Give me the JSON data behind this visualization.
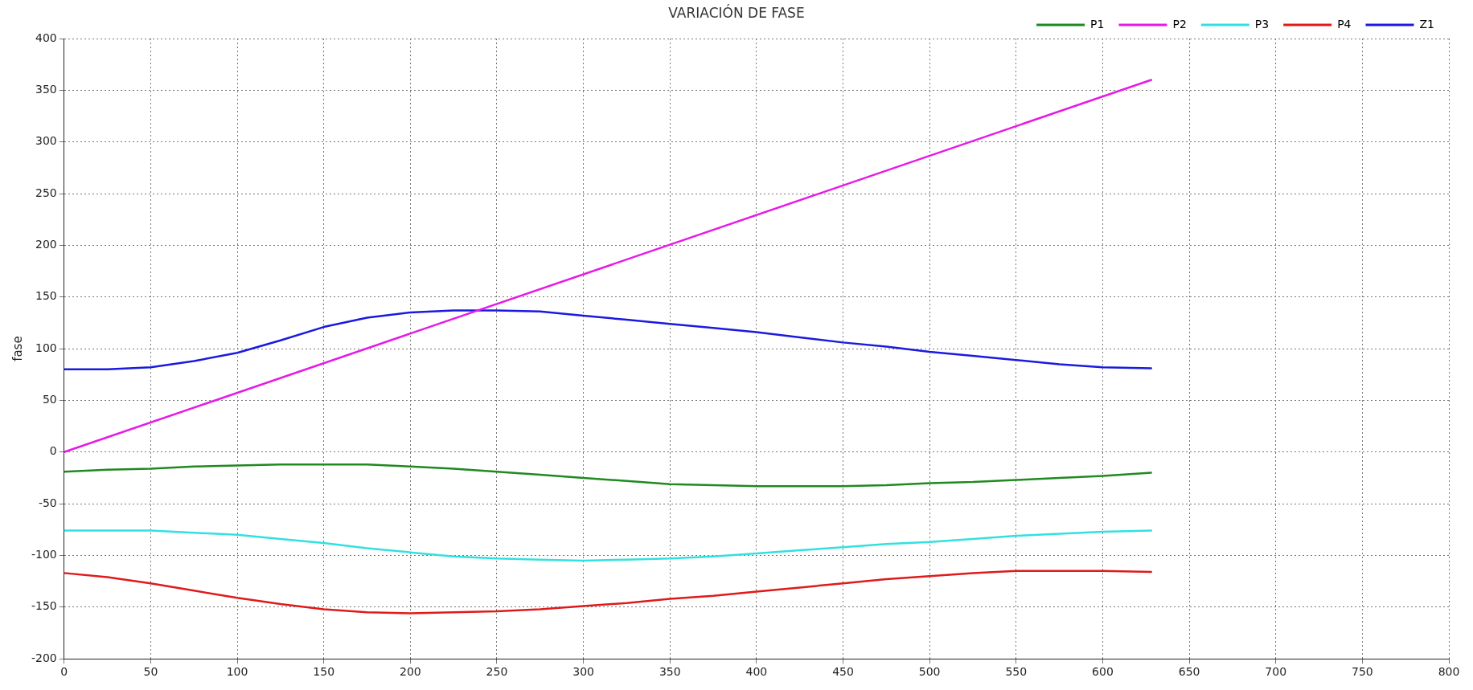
{
  "chart_data": {
    "type": "line",
    "title": "VARIACIÓN DE FASE",
    "ylabel": "fase",
    "x": [
      0,
      25,
      50,
      75,
      100,
      125,
      150,
      175,
      200,
      225,
      250,
      275,
      300,
      325,
      350,
      375,
      400,
      425,
      450,
      475,
      500,
      525,
      550,
      575,
      600,
      628
    ],
    "series": [
      {
        "name": "P1",
        "color": "#1f8a1f",
        "values": [
          -19,
          -17,
          -16,
          -14,
          -13,
          -12,
          -12,
          -12,
          -14,
          -16,
          -19,
          -22,
          -25,
          -28,
          -31,
          -32,
          -33,
          -33,
          -33,
          -32,
          -30,
          -29,
          -27,
          -25,
          -23,
          -20
        ]
      },
      {
        "name": "P2",
        "color": "#e61ae6",
        "x": [
          0,
          628
        ],
        "values": [
          0,
          360
        ]
      },
      {
        "name": "P3",
        "color": "#33e0e0",
        "values": [
          -76,
          -76,
          -76,
          -78,
          -80,
          -84,
          -88,
          -93,
          -97,
          -101,
          -103,
          -104,
          -105,
          -104,
          -103,
          -101,
          -98,
          -95,
          -92,
          -89,
          -87,
          -84,
          -81,
          -79,
          -77,
          -76
        ]
      },
      {
        "name": "P4",
        "color": "#e01a1a",
        "values": [
          -117,
          -121,
          -127,
          -134,
          -141,
          -147,
          -152,
          -155,
          -156,
          -155,
          -154,
          -152,
          -149,
          -146,
          -142,
          -139,
          -135,
          -131,
          -127,
          -123,
          -120,
          -117,
          -115,
          -115,
          -115,
          -116
        ]
      },
      {
        "name": "Z1",
        "color": "#1a1ae0",
        "values": [
          80,
          80,
          82,
          88,
          96,
          108,
          121,
          130,
          135,
          137,
          137,
          136,
          132,
          128,
          124,
          120,
          116,
          111,
          106,
          102,
          97,
          93,
          89,
          85,
          82,
          81
        ]
      }
    ],
    "xlim": [
      0,
      800
    ],
    "xticks": [
      0,
      50,
      100,
      150,
      200,
      250,
      300,
      350,
      400,
      450,
      500,
      550,
      600,
      650,
      700,
      750,
      800
    ],
    "ylim": [
      -200,
      400
    ],
    "yticks": [
      -200,
      -150,
      -100,
      -50,
      0,
      50,
      100,
      150,
      200,
      250,
      300,
      350,
      400
    ],
    "grid": true,
    "legend": "top right",
    "marker": "none",
    "line_style": "solid"
  }
}
